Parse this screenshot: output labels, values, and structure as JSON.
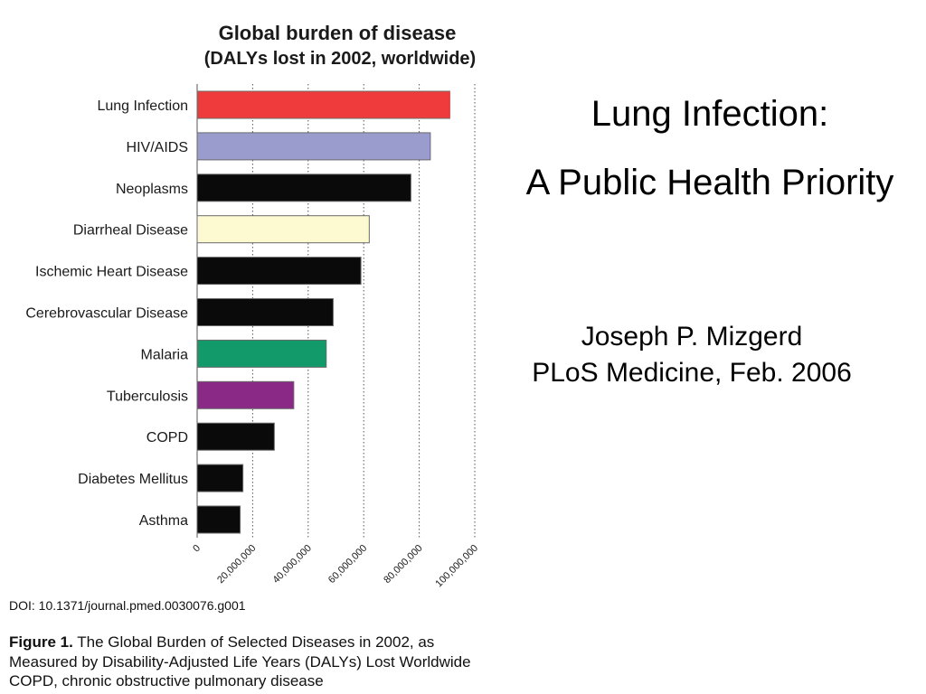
{
  "slide": {
    "title_line1": "Lung Infection:",
    "title_line2": "A Public Health Priority",
    "author": "Joseph P. Mizgerd",
    "journal": "PLoS Medicine, Feb. 2006"
  },
  "figure": {
    "doi": "DOI: 10.1371/journal.pmed.0030076.g001",
    "caption_label": "Figure 1.",
    "caption_text": " The Global Burden of Selected Diseases in 2002, as Measured by Disability-Adjusted Life Years (DALYs) Lost Worldwide",
    "note": "COPD, chronic obstructive pulmonary disease"
  },
  "chart_data": {
    "type": "bar",
    "orientation": "horizontal",
    "title": "Global burden of disease",
    "subtitle": "(DALYs lost in 2002, worldwide)",
    "xlabel": "",
    "ylabel": "",
    "xlim": [
      0,
      100000000
    ],
    "x_ticks": [
      0,
      20000000,
      40000000,
      60000000,
      80000000,
      100000000
    ],
    "x_tick_labels": [
      "0",
      "20,000,000",
      "40,000,000",
      "60,000,000",
      "80,000,000",
      "100,000,000"
    ],
    "grid": "vertical dotted",
    "categories": [
      "Lung Infection",
      "HIV/AIDS",
      "Neoplasms",
      "Diarrheal Disease",
      "Ischemic Heart Disease",
      "Cerebrovascular Disease",
      "Malaria",
      "Tuberculosis",
      "COPD",
      "Diabetes Mellitus",
      "Asthma"
    ],
    "values": [
      91000000,
      84000000,
      77000000,
      62000000,
      59000000,
      49000000,
      46500000,
      34800000,
      27800000,
      16500000,
      15500000
    ],
    "colors": [
      "#ef3b3b",
      "#9a9ccd",
      "#0a0a0a",
      "#fdfad2",
      "#0a0a0a",
      "#0a0a0a",
      "#139a6a",
      "#8a2a86",
      "#0a0a0a",
      "#0a0a0a",
      "#0a0a0a"
    ]
  }
}
